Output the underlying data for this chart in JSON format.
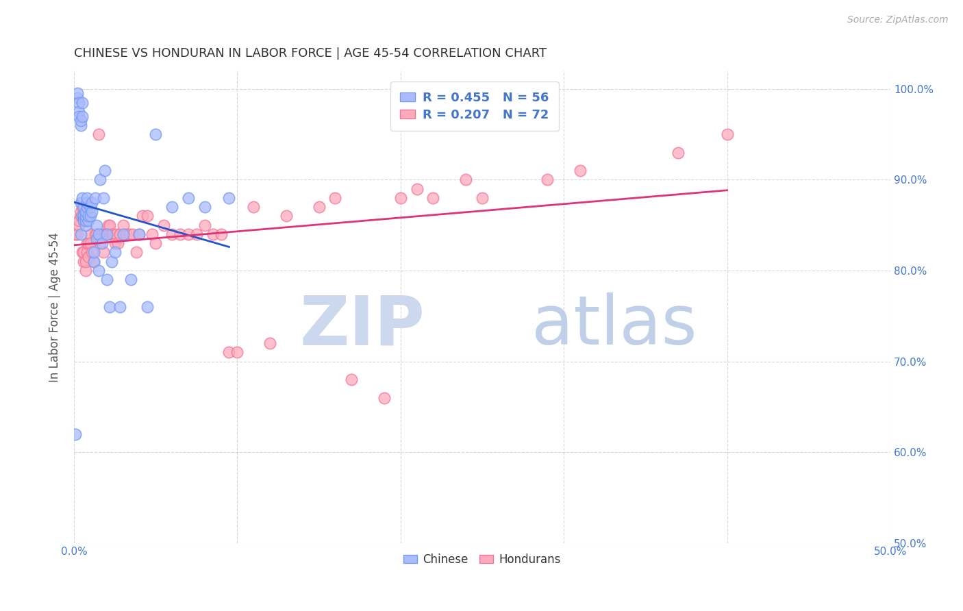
{
  "title": "CHINESE VS HONDURAN IN LABOR FORCE | AGE 45-54 CORRELATION CHART",
  "source": "Source: ZipAtlas.com",
  "ylabel": "In Labor Force | Age 45-54",
  "xlim": [
    0.0,
    0.5
  ],
  "ylim": [
    0.5,
    1.02
  ],
  "right_ytick_vals": [
    0.5,
    0.6,
    0.7,
    0.8,
    0.9,
    1.0
  ],
  "right_ytick_labels": [
    "50.0%",
    "60.0%",
    "70.0%",
    "80.0%",
    "90.0%",
    "100.0%"
  ],
  "xtick_vals": [
    0.0,
    0.5
  ],
  "xtick_labels": [
    "0.0%",
    "50.0%"
  ],
  "chinese_R": 0.455,
  "chinese_N": 56,
  "honduran_R": 0.207,
  "honduran_N": 72,
  "chinese_scatter_face": "#aabbff",
  "chinese_scatter_edge": "#7799ee",
  "honduran_scatter_face": "#ffaabb",
  "honduran_scatter_edge": "#ee7799",
  "chinese_line_color": "#2255cc",
  "honduran_line_color": "#dd3377",
  "background_color": "#ffffff",
  "grid_color": "#cccccc",
  "watermark_zip_color": "#ccd8ee",
  "watermark_atlas_color": "#c0d0e8",
  "title_color": "#333333",
  "axis_color": "#4477cc",
  "legend_chinese_face": "#aabbff",
  "legend_honduran_face": "#ffaabb",
  "chinese_x": [
    0.001,
    0.002,
    0.002,
    0.003,
    0.003,
    0.003,
    0.004,
    0.004,
    0.004,
    0.004,
    0.005,
    0.005,
    0.005,
    0.005,
    0.006,
    0.006,
    0.006,
    0.007,
    0.007,
    0.007,
    0.007,
    0.008,
    0.008,
    0.008,
    0.009,
    0.009,
    0.01,
    0.01,
    0.011,
    0.011,
    0.012,
    0.012,
    0.013,
    0.014,
    0.014,
    0.015,
    0.016,
    0.017,
    0.018,
    0.019,
    0.02,
    0.022,
    0.023,
    0.025,
    0.028,
    0.03,
    0.035,
    0.04,
    0.045,
    0.05,
    0.06,
    0.07,
    0.08,
    0.095,
    0.02,
    0.015
  ],
  "chinese_y": [
    0.62,
    0.99,
    0.995,
    0.985,
    0.975,
    0.97,
    0.96,
    0.965,
    0.84,
    0.875,
    0.985,
    0.97,
    0.88,
    0.86,
    0.87,
    0.86,
    0.855,
    0.85,
    0.855,
    0.86,
    0.865,
    0.87,
    0.875,
    0.88,
    0.855,
    0.86,
    0.86,
    0.87,
    0.865,
    0.875,
    0.81,
    0.82,
    0.88,
    0.85,
    0.835,
    0.84,
    0.9,
    0.83,
    0.88,
    0.91,
    0.84,
    0.76,
    0.81,
    0.82,
    0.76,
    0.84,
    0.79,
    0.84,
    0.76,
    0.95,
    0.87,
    0.88,
    0.87,
    0.88,
    0.79,
    0.8
  ],
  "honduran_x": [
    0.001,
    0.002,
    0.003,
    0.003,
    0.004,
    0.004,
    0.005,
    0.005,
    0.006,
    0.006,
    0.007,
    0.007,
    0.008,
    0.008,
    0.009,
    0.009,
    0.01,
    0.01,
    0.011,
    0.012,
    0.013,
    0.014,
    0.015,
    0.016,
    0.017,
    0.018,
    0.019,
    0.02,
    0.021,
    0.022,
    0.023,
    0.024,
    0.025,
    0.026,
    0.027,
    0.028,
    0.03,
    0.032,
    0.034,
    0.036,
    0.038,
    0.04,
    0.042,
    0.045,
    0.048,
    0.05,
    0.055,
    0.06,
    0.065,
    0.07,
    0.075,
    0.08,
    0.085,
    0.09,
    0.095,
    0.1,
    0.11,
    0.12,
    0.13,
    0.15,
    0.16,
    0.17,
    0.19,
    0.2,
    0.21,
    0.22,
    0.24,
    0.25,
    0.29,
    0.31,
    0.37,
    0.4
  ],
  "honduran_y": [
    0.84,
    0.84,
    0.85,
    0.855,
    0.86,
    0.865,
    0.87,
    0.82,
    0.81,
    0.82,
    0.8,
    0.81,
    0.82,
    0.83,
    0.815,
    0.83,
    0.84,
    0.83,
    0.82,
    0.81,
    0.84,
    0.84,
    0.95,
    0.83,
    0.84,
    0.82,
    0.84,
    0.84,
    0.85,
    0.85,
    0.84,
    0.84,
    0.83,
    0.84,
    0.83,
    0.84,
    0.85,
    0.84,
    0.84,
    0.84,
    0.82,
    0.84,
    0.86,
    0.86,
    0.84,
    0.83,
    0.85,
    0.84,
    0.84,
    0.84,
    0.84,
    0.85,
    0.84,
    0.84,
    0.71,
    0.71,
    0.87,
    0.72,
    0.86,
    0.87,
    0.88,
    0.68,
    0.66,
    0.88,
    0.89,
    0.88,
    0.9,
    0.88,
    0.9,
    0.91,
    0.93,
    0.95
  ]
}
